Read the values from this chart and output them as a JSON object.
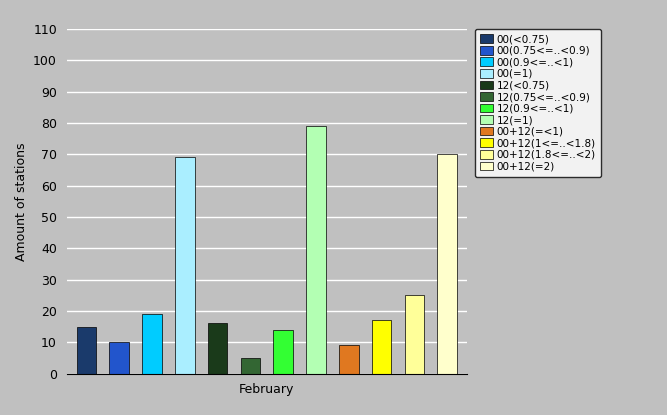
{
  "xlabel": "February",
  "ylabel": "Amount of stations",
  "ylim": [
    0,
    110
  ],
  "yticks": [
    0,
    10,
    20,
    30,
    40,
    50,
    60,
    70,
    80,
    90,
    100,
    110
  ],
  "background_color": "#c0c0c0",
  "plot_bg_color": "#c0c0c0",
  "bars": [
    {
      "label": "00(<0.75)",
      "value": 15,
      "color": "#1a3a6b"
    },
    {
      "label": "00(0.75<=..<0.9)",
      "value": 10,
      "color": "#2255cc"
    },
    {
      "label": "00(0.9<=..<1)",
      "value": 19,
      "color": "#00ccff"
    },
    {
      "label": "00(=1)",
      "value": 69,
      "color": "#aaeeff"
    },
    {
      "label": "12(<0.75)",
      "value": 16,
      "color": "#1a3a1a"
    },
    {
      "label": "12(0.75<=..<0.9)",
      "value": 5,
      "color": "#336633"
    },
    {
      "label": "12(0.9<=..<1)",
      "value": 14,
      "color": "#33ff33"
    },
    {
      "label": "12(=1)",
      "value": 79,
      "color": "#b3ffb3"
    },
    {
      "label": "00+12(=<1)",
      "value": 9,
      "color": "#e07820"
    },
    {
      "label": "00+12(1<=..<1.8)",
      "value": 17,
      "color": "#ffff00"
    },
    {
      "label": "00+12(1.8<=..<2)",
      "value": 25,
      "color": "#ffff99"
    },
    {
      "label": "00+12(=2)",
      "value": 70,
      "color": "#ffffcc"
    }
  ],
  "legend_fontsize": 7.5,
  "axis_fontsize": 9,
  "tick_fontsize": 9,
  "bar_width": 0.6,
  "bar_gap": 0.05
}
